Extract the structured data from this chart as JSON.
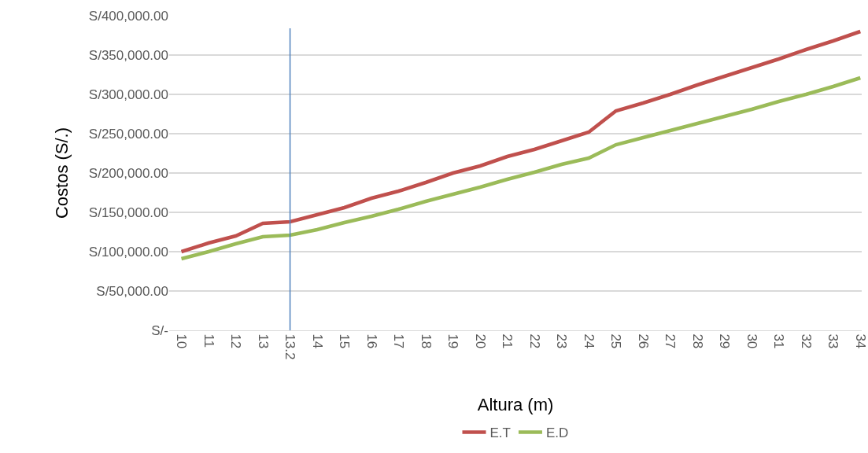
{
  "chart_data": {
    "type": "line",
    "xlabel": "Altura (m)",
    "ylabel": "Costos (S/.)",
    "categories": [
      "10",
      "11",
      "12",
      "13",
      "13.2",
      "14",
      "15",
      "16",
      "17",
      "18",
      "19",
      "20",
      "21",
      "22",
      "23",
      "24",
      "25",
      "26",
      "27",
      "28",
      "29",
      "30",
      "31",
      "32",
      "33",
      "34"
    ],
    "series": [
      {
        "name": "E.T",
        "color": "#c0504d",
        "values": [
          100000,
          111000,
          120000,
          136000,
          138000,
          147000,
          156000,
          168000,
          177000,
          188000,
          200000,
          209000,
          221000,
          230000,
          241000,
          252000,
          279000,
          289000,
          300000,
          312000,
          323000,
          334000,
          345000,
          357000,
          368000,
          380000
        ]
      },
      {
        "name": "E.D",
        "color": "#9bbb59",
        "values": [
          91000,
          100000,
          110000,
          119000,
          121000,
          128000,
          137000,
          145000,
          154000,
          164000,
          173000,
          182000,
          192000,
          201000,
          211000,
          219000,
          236000,
          245000,
          254000,
          263000,
          272000,
          281000,
          291000,
          300000,
          310000,
          321000
        ]
      }
    ],
    "ylim": [
      0,
      400000
    ],
    "yticks": [
      {
        "value": 0,
        "label": "S/-"
      },
      {
        "value": 50000,
        "label": "S/50,000.00"
      },
      {
        "value": 100000,
        "label": "S/100,000.00"
      },
      {
        "value": 150000,
        "label": "S/150,000.00"
      },
      {
        "value": 200000,
        "label": "S/200,000.00"
      },
      {
        "value": 250000,
        "label": "S/250,000.00"
      },
      {
        "value": 300000,
        "label": "S/300,000.00"
      },
      {
        "value": 350000,
        "label": "S/350,000.00"
      },
      {
        "value": 400000,
        "label": "S/400,000.00"
      }
    ],
    "ref_lines": [
      {
        "axis": "x",
        "value": "13.2",
        "color": "#4f81bd"
      }
    ],
    "grid": "y",
    "legend": "bottom",
    "marker": "none",
    "line_style": "solid"
  }
}
